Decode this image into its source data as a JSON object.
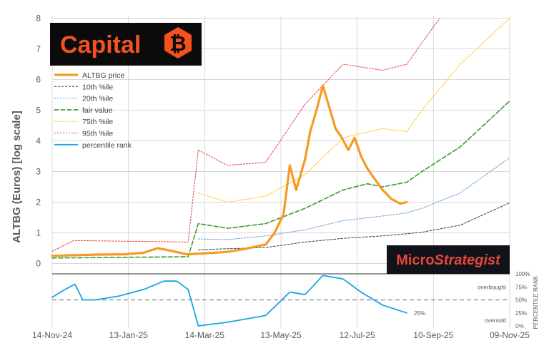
{
  "chart_data": {
    "type": "line",
    "ylabel": "ALTBG (Euros) [log scale]",
    "y_ticks": [
      "0",
      "1",
      "2",
      "3",
      "4",
      "5",
      "6",
      "7",
      "8"
    ],
    "x_ticks": [
      "14-Nov-24",
      "13-Jan-25",
      "14-Mar-25",
      "13-May-25",
      "12-Jul-25",
      "10-Sep-25",
      "09-Nov-25"
    ],
    "x_range": [
      "14-Nov-24",
      "09-Nov-25"
    ],
    "rank_axis_label": "PERCENTILE RANK",
    "rank_ticks": [
      "100%",
      "75%",
      "50%",
      "25%",
      "0%"
    ],
    "rank_zone_labels": {
      "overbought": "overbought",
      "oversold": "oversold"
    },
    "rank_last_label": "25%",
    "grid": true,
    "legend_position": "top-left",
    "colors": {
      "price": "#f59a23",
      "p10": "#404040",
      "p20": "#5b9bd5",
      "fair": "#3a9a2c",
      "p75": "#ffc000",
      "p95": "#e83a3a",
      "rank": "#18a5e0"
    },
    "series": [
      {
        "key": "price",
        "name": "ALTBG price",
        "points": [
          [
            "14-Nov-24",
            0.25
          ],
          [
            "01-Dec-24",
            0.27
          ],
          [
            "20-Dec-24",
            0.29
          ],
          [
            "10-Jan-25",
            0.3
          ],
          [
            "25-Jan-25",
            0.35
          ],
          [
            "05-Feb-25",
            0.5
          ],
          [
            "15-Feb-25",
            0.42
          ],
          [
            "28-Feb-25",
            0.3
          ],
          [
            "14-Mar-25",
            0.33
          ],
          [
            "01-Apr-25",
            0.38
          ],
          [
            "15-Apr-25",
            0.48
          ],
          [
            "01-May-25",
            0.62
          ],
          [
            "08-May-25",
            1.0
          ],
          [
            "15-May-25",
            1.6
          ],
          [
            "20-May-25",
            3.2
          ],
          [
            "25-May-25",
            2.4
          ],
          [
            "01-Jun-25",
            3.4
          ],
          [
            "05-Jun-25",
            4.3
          ],
          [
            "10-Jun-25",
            5.0
          ],
          [
            "15-Jun-25",
            5.8
          ],
          [
            "20-Jun-25",
            5.1
          ],
          [
            "25-Jun-25",
            4.4
          ],
          [
            "30-Jun-25",
            4.1
          ],
          [
            "05-Jul-25",
            3.7
          ],
          [
            "10-Jul-25",
            4.1
          ],
          [
            "15-Jul-25",
            3.5
          ],
          [
            "20-Jul-25",
            3.1
          ],
          [
            "25-Jul-25",
            2.8
          ],
          [
            "01-Aug-25",
            2.4
          ],
          [
            "08-Aug-25",
            2.1
          ],
          [
            "15-Aug-25",
            1.95
          ],
          [
            "20-Aug-25",
            2.0
          ]
        ]
      },
      {
        "key": "p10",
        "name": "10th %ile",
        "points": [
          [
            "09-Mar-25",
            0.45
          ],
          [
            "01-May-25",
            0.52
          ],
          [
            "01-Jun-25",
            0.7
          ],
          [
            "01-Jul-25",
            0.82
          ],
          [
            "01-Aug-25",
            0.9
          ],
          [
            "15-Aug-25",
            0.95
          ],
          [
            "01-Sep-25",
            1.02
          ],
          [
            "01-Oct-25",
            1.25
          ],
          [
            "09-Nov-25",
            1.98
          ]
        ]
      },
      {
        "key": "p20",
        "name": "20th %ile",
        "points": [
          [
            "09-Mar-25",
            0.8
          ],
          [
            "01-Apr-25",
            0.78
          ],
          [
            "01-May-25",
            0.9
          ],
          [
            "01-Jun-25",
            1.1
          ],
          [
            "01-Jul-25",
            1.4
          ],
          [
            "01-Aug-25",
            1.55
          ],
          [
            "20-Aug-25",
            1.65
          ],
          [
            "01-Sep-25",
            1.8
          ],
          [
            "01-Oct-25",
            2.3
          ],
          [
            "09-Nov-25",
            3.45
          ]
        ]
      },
      {
        "key": "fair",
        "name": "fair value",
        "points": [
          [
            "14-Nov-24",
            0.18
          ],
          [
            "01-Mar-25",
            0.22
          ],
          [
            "09-Mar-25",
            1.3
          ],
          [
            "01-Apr-25",
            1.15
          ],
          [
            "01-May-25",
            1.3
          ],
          [
            "01-Jun-25",
            1.8
          ],
          [
            "01-Jul-25",
            2.4
          ],
          [
            "20-Jul-25",
            2.6
          ],
          [
            "01-Aug-25",
            2.5
          ],
          [
            "20-Aug-25",
            2.65
          ],
          [
            "01-Sep-25",
            3.0
          ],
          [
            "01-Oct-25",
            3.8
          ],
          [
            "09-Nov-25",
            5.3
          ]
        ]
      },
      {
        "key": "p75",
        "name": "75th %ile",
        "points": [
          [
            "09-Mar-25",
            2.3
          ],
          [
            "01-Apr-25",
            2.0
          ],
          [
            "01-May-25",
            2.2
          ],
          [
            "01-Jun-25",
            2.9
          ],
          [
            "01-Jul-25",
            4.1
          ],
          [
            "01-Aug-25",
            4.4
          ],
          [
            "20-Aug-25",
            4.3
          ],
          [
            "01-Sep-25",
            5.0
          ],
          [
            "01-Oct-25",
            6.5
          ],
          [
            "09-Nov-25",
            8.0
          ]
        ]
      },
      {
        "key": "p95",
        "name": "95th %ile",
        "points": [
          [
            "14-Nov-24",
            0.4
          ],
          [
            "01-Dec-24",
            0.75
          ],
          [
            "01-Mar-25",
            0.7
          ],
          [
            "09-Mar-25",
            3.7
          ],
          [
            "01-Apr-25",
            3.2
          ],
          [
            "01-May-25",
            3.3
          ],
          [
            "01-Jun-25",
            5.2
          ],
          [
            "01-Jul-25",
            6.5
          ],
          [
            "01-Aug-25",
            6.3
          ],
          [
            "20-Aug-25",
            6.5
          ],
          [
            "01-Sep-25",
            7.2
          ],
          [
            "15-Sep-25",
            8.0
          ]
        ]
      },
      {
        "key": "rank",
        "name": "percentile rank",
        "points": [
          [
            "14-Nov-24",
            0.55
          ],
          [
            "24-Nov-24",
            0.7
          ],
          [
            "02-Dec-24",
            0.8
          ],
          [
            "08-Dec-24",
            0.5
          ],
          [
            "18-Dec-24",
            0.5
          ],
          [
            "05-Jan-25",
            0.57
          ],
          [
            "25-Jan-25",
            0.7
          ],
          [
            "10-Feb-25",
            0.86
          ],
          [
            "20-Feb-25",
            0.86
          ],
          [
            "01-Mar-25",
            0.7
          ],
          [
            "09-Mar-25",
            0.0
          ],
          [
            "01-Apr-25",
            0.07
          ],
          [
            "01-May-25",
            0.2
          ],
          [
            "20-May-25",
            0.65
          ],
          [
            "01-Jun-25",
            0.6
          ],
          [
            "15-Jun-25",
            0.97
          ],
          [
            "01-Jul-25",
            0.9
          ],
          [
            "15-Jul-25",
            0.65
          ],
          [
            "01-Aug-25",
            0.4
          ],
          [
            "20-Aug-25",
            0.25
          ]
        ]
      }
    ]
  },
  "logo": {
    "capital": "Capital",
    "ms_plain": "Micro",
    "ms_italic": "Strategist"
  }
}
